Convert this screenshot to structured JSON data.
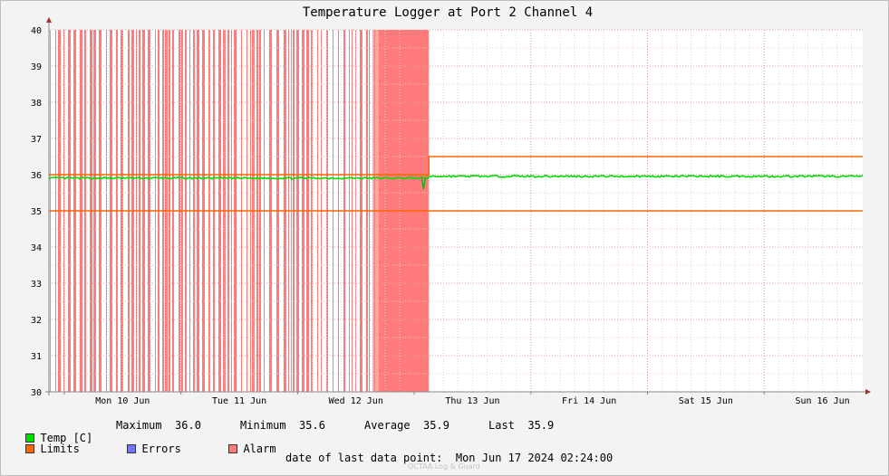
{
  "chart_data": {
    "type": "line",
    "title": "Temperature Logger at Port 2 Channel 4",
    "ylim": [
      30,
      40
    ],
    "yticks": [
      30,
      31,
      32,
      33,
      34,
      35,
      36,
      37,
      38,
      39,
      40
    ],
    "xlim_days": [
      "Sun 09 Jun 2024 12:00",
      "Mon 17 Jun 2024 02:24"
    ],
    "xtick_labels": [
      "Mon 10 Jun",
      "Tue 11 Jun",
      "Wed 12 Jun",
      "Thu 13 Jun",
      "Fri 14 Jun",
      "Sat 15 Jun",
      "Sun 16 Jun"
    ],
    "grid": true,
    "series": [
      {
        "name": "Temp [C]",
        "color": "#00dd00",
        "values": "approx. 35.9 before Thu 13 Jun 03:00, 35.95 after; brief dip to 35.6 near Thu 13 Jun 02:00"
      },
      {
        "name": "Limits",
        "color": "#ff6600",
        "lower": 35.0,
        "upper_before": 36.0,
        "upper_after": 36.5,
        "upper_change": "Thu 13 Jun 2024 03:00"
      },
      {
        "name": "Errors",
        "color": "#6b78ff"
      },
      {
        "name": "Alarm",
        "color": "#ff7b7b",
        "periods": "intermittent alarm spikes from Sun 09 Jun 12:00 until Thu 13 Jun 03:00, dense near the end"
      }
    ]
  },
  "legend": {
    "temp_label": "Temp [C]",
    "maximum_label": "Maximum",
    "maximum_value": "36.0",
    "minimum_label": "Minimum",
    "minimum_value": "35.6",
    "average_label": "Average",
    "average_value": "35.9",
    "last_label": "Last",
    "last_value": "35.9",
    "limits_label": "Limits",
    "errors_label": "Errors",
    "alarm_label": "Alarm",
    "temp_color": "#00dd00",
    "limits_color": "#ff6600",
    "errors_color": "#6b78ff",
    "alarm_color": "#ff7b7b"
  },
  "footer": {
    "last_point_label": "date of last data point:",
    "last_point_value": "Mon Jun 17 2024 02:24:00",
    "credit": "OCTAA Log & Guard"
  }
}
